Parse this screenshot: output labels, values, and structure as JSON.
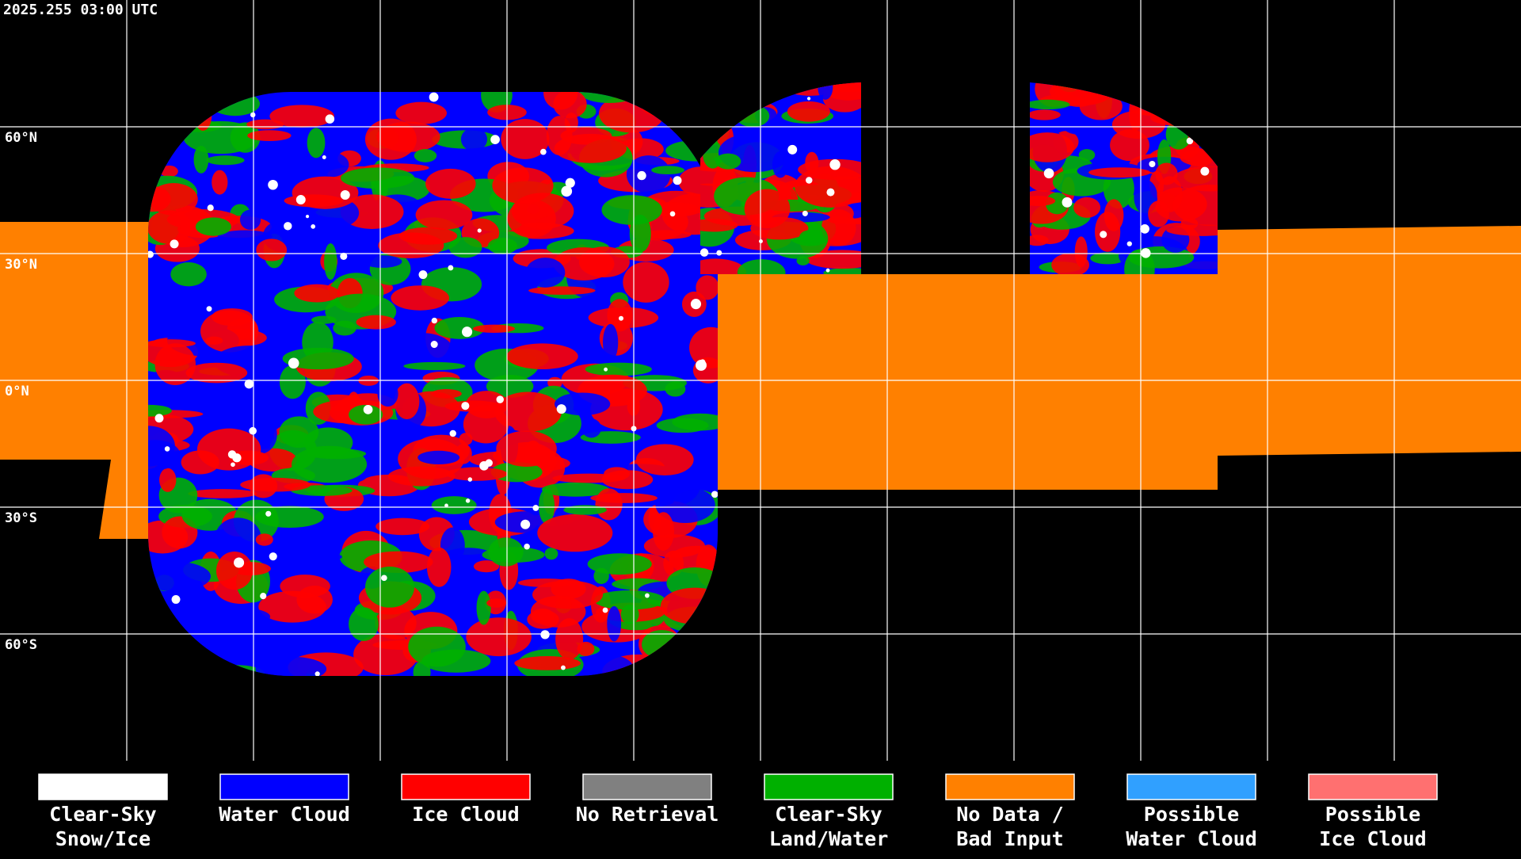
{
  "header": {
    "timestamp": "2025.255 03:00 UTC"
  },
  "lat_labels": [
    "60°N",
    "30°N",
    "0°N",
    "30°S",
    "60°S"
  ],
  "legend": [
    {
      "lines": [
        "Clear-Sky",
        "Snow/Ice"
      ],
      "color": "#ffffff"
    },
    {
      "lines": [
        "Water Cloud"
      ],
      "color": "#0000ff"
    },
    {
      "lines": [
        "Ice Cloud"
      ],
      "color": "#ff0000"
    },
    {
      "lines": [
        "No Retrieval"
      ],
      "color": "#808080"
    },
    {
      "lines": [
        "Clear-Sky",
        "Land/Water"
      ],
      "color": "#00b000"
    },
    {
      "lines": [
        "No Data /",
        "Bad Input"
      ],
      "color": "#ff8000"
    },
    {
      "lines": [
        "Possible",
        "Water Cloud"
      ],
      "color": "#30a0ff"
    },
    {
      "lines": [
        "Possible",
        "Ice Cloud"
      ],
      "color": "#ff7070"
    }
  ]
}
